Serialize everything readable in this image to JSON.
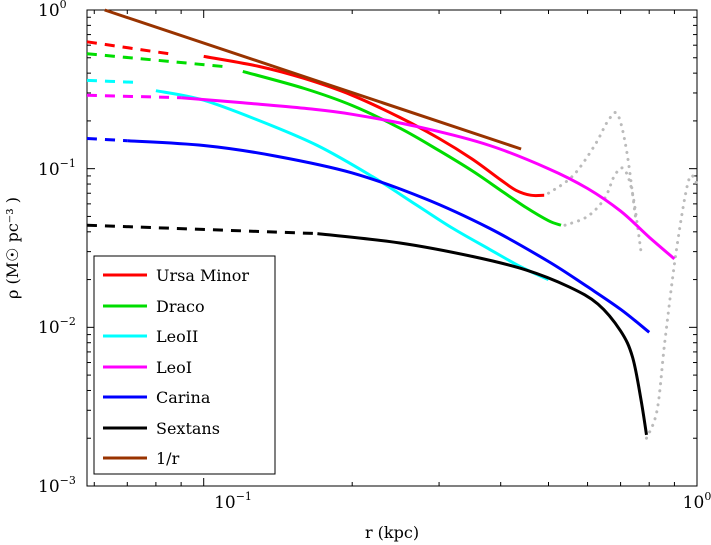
{
  "chart_data": {
    "type": "line",
    "xscale": "log",
    "yscale": "log",
    "xlim": [
      0.058,
      1.0
    ],
    "ylim": [
      0.001,
      1.0
    ],
    "xlabel": "r (kpc)",
    "ylabel": "ρ (M☉ pc⁻³ )",
    "x_tick_labels": [
      {
        "value": 0.1,
        "mant": "10",
        "exp": "−1"
      },
      {
        "value": 1.0,
        "mant": "10",
        "exp": "0"
      }
    ],
    "y_tick_labels": [
      {
        "value": 0.001,
        "mant": "10",
        "exp": "−3"
      },
      {
        "value": 0.01,
        "mant": "10",
        "exp": "−2"
      },
      {
        "value": 0.1,
        "mant": "10",
        "exp": "−1"
      },
      {
        "value": 1.0,
        "mant": "10",
        "exp": "0"
      }
    ],
    "legend_position": "bottom-left",
    "series": [
      {
        "name": "Ursa Minor",
        "color": "#ff0000",
        "dashed_x": [
          0.058,
          0.085
        ],
        "dashed_y": [
          0.63,
          0.53
        ],
        "x": [
          0.1,
          0.13,
          0.16,
          0.2,
          0.25,
          0.3,
          0.35,
          0.4,
          0.43,
          0.46,
          0.49
        ],
        "y": [
          0.51,
          0.44,
          0.37,
          0.29,
          0.21,
          0.155,
          0.115,
          0.085,
          0.073,
          0.068,
          0.068
        ],
        "tail_x": [
          0.5,
          0.56,
          0.62,
          0.66,
          0.69,
          0.72,
          0.75
        ],
        "tail_y": [
          0.07,
          0.09,
          0.14,
          0.2,
          0.22,
          0.13,
          0.05
        ]
      },
      {
        "name": "Draco",
        "color": "#00dd00",
        "dashed_x": [
          0.058,
          0.11
        ],
        "dashed_y": [
          0.53,
          0.44
        ],
        "x": [
          0.12,
          0.16,
          0.2,
          0.25,
          0.3,
          0.35,
          0.4,
          0.45,
          0.5,
          0.53
        ],
        "y": [
          0.41,
          0.32,
          0.25,
          0.18,
          0.13,
          0.097,
          0.073,
          0.057,
          0.047,
          0.044
        ],
        "tail_x": [
          0.54,
          0.6,
          0.65,
          0.68,
          0.71,
          0.74,
          0.77
        ],
        "tail_y": [
          0.044,
          0.05,
          0.065,
          0.09,
          0.1,
          0.07,
          0.03
        ]
      },
      {
        "name": "LeoII",
        "color": "#00ffff",
        "dashed_x": [
          0.058,
          0.072
        ],
        "dashed_y": [
          0.36,
          0.35
        ],
        "x": [
          0.08,
          0.1,
          0.13,
          0.17,
          0.22,
          0.27,
          0.32,
          0.38,
          0.44,
          0.5
        ],
        "y": [
          0.31,
          0.27,
          0.2,
          0.14,
          0.089,
          0.059,
          0.042,
          0.031,
          0.024,
          0.02
        ],
        "tail_x": [],
        "tail_y": []
      },
      {
        "name": "LeoI",
        "color": "#ff00ff",
        "dashed_x": [
          0.058,
          0.09
        ],
        "dashed_y": [
          0.29,
          0.28
        ],
        "x": [
          0.09,
          0.12,
          0.16,
          0.2,
          0.28,
          0.38,
          0.5,
          0.6,
          0.7,
          0.8,
          0.9
        ],
        "y": [
          0.28,
          0.26,
          0.24,
          0.22,
          0.18,
          0.14,
          0.1,
          0.075,
          0.054,
          0.037,
          0.027
        ],
        "tail_x": [],
        "tail_y": []
      },
      {
        "name": "Carina",
        "color": "#0000ff",
        "dashed_x": [
          0.058,
          0.07
        ],
        "dashed_y": [
          0.155,
          0.15
        ],
        "x": [
          0.07,
          0.1,
          0.14,
          0.2,
          0.28,
          0.38,
          0.5,
          0.6,
          0.7,
          0.8
        ],
        "y": [
          0.15,
          0.14,
          0.12,
          0.094,
          0.065,
          0.042,
          0.026,
          0.018,
          0.013,
          0.0093
        ],
        "tail_x": [],
        "tail_y": []
      },
      {
        "name": "Sextans",
        "color": "#000000",
        "dashed_x": [
          0.058,
          0.17
        ],
        "dashed_y": [
          0.044,
          0.039
        ],
        "x": [
          0.17,
          0.25,
          0.35,
          0.45,
          0.55,
          0.63,
          0.7,
          0.74,
          0.77,
          0.79
        ],
        "y": [
          0.039,
          0.034,
          0.028,
          0.023,
          0.018,
          0.014,
          0.0095,
          0.0065,
          0.0035,
          0.0021
        ],
        "tail_x": [
          0.79,
          0.83,
          0.86,
          0.9,
          0.94,
          0.97,
          1.0
        ],
        "tail_y": [
          0.002,
          0.003,
          0.008,
          0.025,
          0.06,
          0.09,
          0.08
        ]
      },
      {
        "name": "1/r",
        "color": "#993300",
        "dashed_x": [],
        "dashed_y": [],
        "x": [
          0.063,
          0.44
        ],
        "y": [
          1.0,
          0.133
        ],
        "tail_x": [],
        "tail_y": []
      }
    ]
  }
}
